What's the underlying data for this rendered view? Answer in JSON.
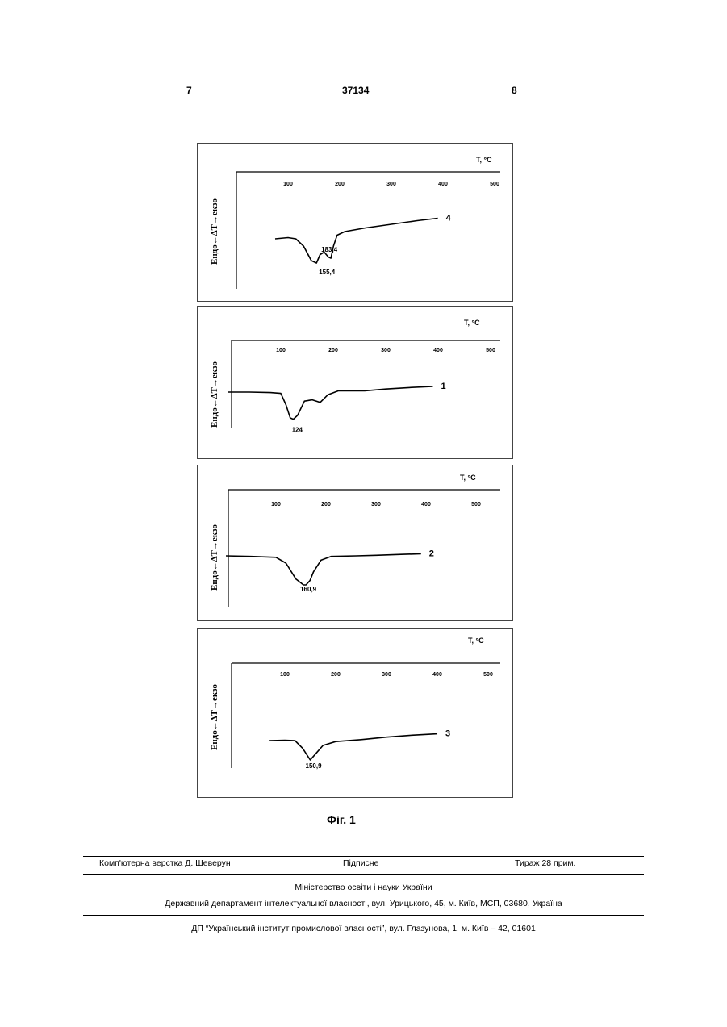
{
  "header": {
    "left_page": "7",
    "patent_number": "37134",
    "right_page": "8"
  },
  "chart_data": [
    {
      "type": "line",
      "axis_label": "T, °C",
      "ylabel": "Ендо←ΔT→екзо",
      "x_ticks": [
        "100",
        "200",
        "300",
        "400",
        "500"
      ],
      "xlim": [
        0,
        500
      ],
      "series": [
        {
          "name": "4",
          "x": [
            75,
            100,
            115,
            130,
            145,
            155,
            162,
            170,
            178,
            183,
            188,
            195,
            210,
            250,
            300,
            350,
            390
          ],
          "y": [
            0,
            0.05,
            0,
            -0.3,
            -0.9,
            -1.0,
            -0.65,
            -0.55,
            -0.75,
            -0.8,
            -0.3,
            0.15,
            0.3,
            0.45,
            0.6,
            0.75,
            0.85
          ]
        }
      ],
      "annotations": [
        "155,4",
        "183,4"
      ]
    },
    {
      "type": "line",
      "axis_label": "T, °C",
      "ylabel": "Ендо←ΔT→екзо",
      "x_ticks": [
        "100",
        "200",
        "300",
        "400",
        "500"
      ],
      "xlim": [
        0,
        500
      ],
      "series": [
        {
          "name": "1",
          "x": [
            0,
            40,
            80,
            100,
            110,
            118,
            124,
            132,
            145,
            160,
            175,
            190,
            210,
            260,
            300,
            350,
            390
          ],
          "y": [
            0,
            0,
            -0.02,
            -0.05,
            -0.5,
            -1.0,
            -1.05,
            -0.9,
            -0.35,
            -0.3,
            -0.4,
            -0.1,
            0.05,
            0.05,
            0.12,
            0.18,
            0.22
          ]
        }
      ],
      "annotations": [
        "124"
      ]
    },
    {
      "type": "line",
      "axis_label": "T, °C",
      "ylabel": "Ендо←ΔT→екзо",
      "x_ticks": [
        "100",
        "200",
        "300",
        "400",
        "500"
      ],
      "xlim": [
        0,
        500
      ],
      "series": [
        {
          "name": "2",
          "x": [
            0,
            50,
            100,
            120,
            140,
            155,
            160,
            168,
            175,
            190,
            210,
            260,
            300,
            350,
            390
          ],
          "y": [
            0,
            -0.02,
            -0.05,
            -0.25,
            -0.8,
            -1.0,
            -1.0,
            -0.85,
            -0.55,
            -0.15,
            -0.02,
            0,
            0.02,
            0.05,
            0.07
          ]
        }
      ],
      "annotations": [
        "160,9"
      ]
    },
    {
      "type": "line",
      "axis_label": "T, °C",
      "ylabel": "Ендо←ΔT→екзо",
      "x_ticks": [
        "100",
        "200",
        "300",
        "400",
        "500"
      ],
      "xlim": [
        0,
        500
      ],
      "series": [
        {
          "name": "3",
          "x": [
            70,
            100,
            120,
            135,
            150,
            160,
            175,
            200,
            250,
            300,
            350,
            400
          ],
          "y": [
            0,
            0.02,
            0,
            -0.4,
            -1.0,
            -0.7,
            -0.25,
            -0.05,
            0.05,
            0.18,
            0.28,
            0.35
          ]
        }
      ],
      "annotations": [
        "150,9"
      ]
    }
  ],
  "figure_caption": "Фіг. 1",
  "footer": {
    "layout_credit": "Комп'ютерна верстка Д. Шеверун",
    "signed": "Підписне",
    "circulation": "Тираж 28 прим.",
    "ministry": "Міністерство освіти і науки України",
    "department": "Державний департамент інтелектуальної власності, вул. Урицького, 45, м. Київ, МСП, 03680, Україна",
    "publisher": "ДП “Український інститут промислової власності”, вул. Глазунова, 1, м. Київ – 42, 01601"
  }
}
